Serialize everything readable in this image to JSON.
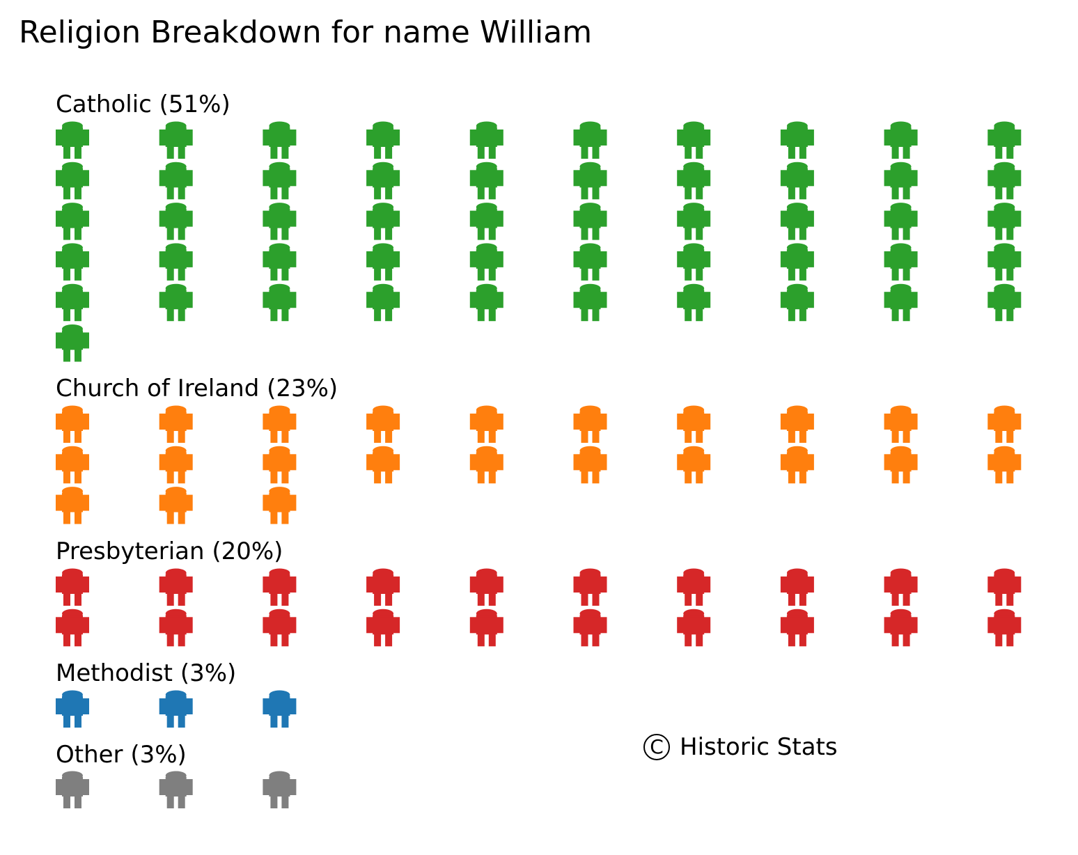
{
  "title": "Religion Breakdown for name William",
  "credit": {
    "icon": "copyright-icon",
    "symbol": "C",
    "text": "Historic Stats"
  },
  "chart_data": {
    "type": "pictogram",
    "title": "Religion Breakdown for name William",
    "icon": "person-icon",
    "icons_per_row": 10,
    "categories": [
      {
        "label": "Catholic (51%)",
        "name": "Catholic",
        "percent": 51,
        "count": 51,
        "color": "#2ca02c"
      },
      {
        "label": "Church of Ireland (23%)",
        "name": "Church of Ireland",
        "percent": 23,
        "count": 23,
        "color": "#ff7f0e"
      },
      {
        "label": "Presbyterian (20%)",
        "name": "Presbyterian",
        "percent": 20,
        "count": 20,
        "color": "#d62728"
      },
      {
        "label": "Methodist (3%)",
        "name": "Methodist",
        "percent": 3,
        "count": 3,
        "color": "#1f77b4"
      },
      {
        "label": "Other (3%)",
        "name": "Other",
        "percent": 3,
        "count": 3,
        "color": "#7f7f7f"
      }
    ]
  }
}
